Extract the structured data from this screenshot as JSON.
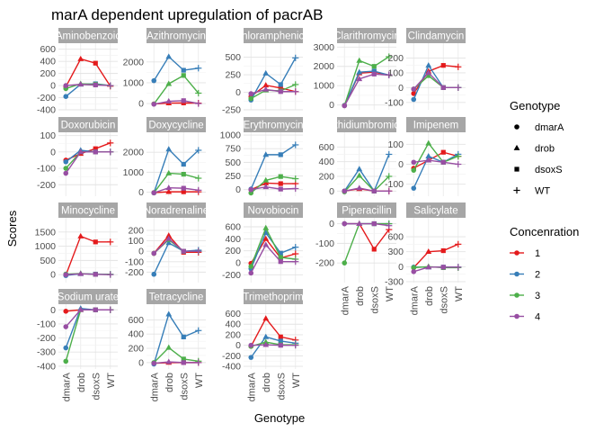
{
  "chart_data": {
    "type": "line",
    "title": "marA dependent upregulation of pacrAB",
    "xlabel": "Genotype",
    "ylabel": "Scores",
    "categories": [
      "dmarA",
      "drob",
      "dsoxS",
      "WT"
    ],
    "grid": true,
    "legend_placement": "right",
    "legends": {
      "shape": {
        "title": "Genotype",
        "entries": [
          {
            "label": "dmarA",
            "shape": "circle"
          },
          {
            "label": "drob",
            "shape": "triangle"
          },
          {
            "label": "dsoxS",
            "shape": "square"
          },
          {
            "label": "WT",
            "shape": "plus"
          }
        ]
      },
      "color": {
        "title": "Concenration",
        "entries": [
          {
            "label": "1",
            "color": "#e41a1c"
          },
          {
            "label": "2",
            "color": "#377eb8"
          },
          {
            "label": "3",
            "color": "#4daf4a"
          },
          {
            "label": "4",
            "color": "#984ea3"
          }
        ]
      }
    },
    "panels": [
      {
        "name": "Aminobenzoic",
        "ylim": [
          -400,
          700
        ],
        "yticks": [
          -400,
          -200,
          0,
          200,
          400,
          600
        ],
        "series": [
          {
            "name": "1",
            "values": [
              -20,
              440,
              370,
              -10
            ]
          },
          {
            "name": "2",
            "values": [
              -180,
              20,
              30,
              0
            ]
          },
          {
            "name": "3",
            "values": [
              -50,
              30,
              20,
              0
            ]
          },
          {
            "name": "4",
            "values": [
              0,
              20,
              10,
              0
            ]
          }
        ]
      },
      {
        "name": "Azithromycin",
        "ylim": [
          -300,
          2900
        ],
        "yticks": [
          0,
          1000,
          2000
        ],
        "series": [
          {
            "name": "1",
            "values": [
              -20,
              20,
              30,
              20
            ]
          },
          {
            "name": "2",
            "values": [
              1100,
              2250,
              1600,
              1700
            ]
          },
          {
            "name": "3",
            "values": [
              -20,
              950,
              1350,
              500
            ]
          },
          {
            "name": "4",
            "values": [
              -30,
              110,
              140,
              0
            ]
          }
        ]
      },
      {
        "name": "Chloramphenicol",
        "ylim": [
          -250,
          700
        ],
        "yticks": [
          -250,
          0,
          250,
          500
        ],
        "series": [
          {
            "name": "1",
            "values": [
              -60,
              100,
              60,
              10
            ]
          },
          {
            "name": "2",
            "values": [
              -110,
              270,
              110,
              490
            ]
          },
          {
            "name": "3",
            "values": [
              -90,
              30,
              20,
              110
            ]
          },
          {
            "name": "4",
            "values": [
              -20,
              40,
              10,
              10
            ]
          }
        ]
      },
      {
        "name": "Clarithromycin",
        "ylim": [
          -250,
          3200
        ],
        "yticks": [
          0,
          1000,
          2000,
          3000
        ],
        "series": [
          {
            "name": "1",
            "values": [
              -30,
              1650,
              1700,
              1550
            ]
          },
          {
            "name": "2",
            "values": [
              -20,
              1700,
              1750,
              1550
            ]
          },
          {
            "name": "3",
            "values": [
              -30,
              2300,
              2000,
              2500
            ]
          },
          {
            "name": "4",
            "values": [
              -40,
              1350,
              1600,
              1550
            ]
          }
        ]
      },
      {
        "name": "Clindamycin",
        "ylim": [
          -150,
          300
        ],
        "yticks": [
          -100,
          0,
          100,
          200
        ],
        "series": [
          {
            "name": "1",
            "values": [
              -40,
              110,
              150,
              140
            ]
          },
          {
            "name": "2",
            "values": [
              -80,
              150,
              0,
              0
            ]
          },
          {
            "name": "3",
            "values": [
              -10,
              80,
              0,
              0
            ]
          },
          {
            "name": "4",
            "values": [
              -10,
              100,
              0,
              0
            ]
          }
        ]
      },
      {
        "name": "Doxorubicin",
        "ylim": [
          -270,
          120
        ],
        "yticks": [
          -200,
          -100,
          0,
          100
        ],
        "series": [
          {
            "name": "1",
            "values": [
              -50,
              -10,
              20,
              55
            ]
          },
          {
            "name": "2",
            "values": [
              -60,
              10,
              0,
              0
            ]
          },
          {
            "name": "3",
            "values": [
              -100,
              0,
              0,
              0
            ]
          },
          {
            "name": "4",
            "values": [
              -130,
              0,
              0,
              0
            ]
          }
        ]
      },
      {
        "name": "Doxycycline",
        "ylim": [
          -200,
          3000
        ],
        "yticks": [
          0,
          1000,
          2000
        ],
        "series": [
          {
            "name": "1",
            "values": [
              -20,
              20,
              20,
              20
            ]
          },
          {
            "name": "2",
            "values": [
              -30,
              2150,
              1400,
              2100
            ]
          },
          {
            "name": "3",
            "values": [
              -30,
              950,
              900,
              700
            ]
          },
          {
            "name": "4",
            "values": [
              -30,
              220,
              200,
              100
            ]
          }
        ]
      },
      {
        "name": "Erythromycin",
        "ylim": [
          -120,
          1050
        ],
        "yticks": [
          0,
          250,
          500,
          750,
          1000
        ],
        "series": [
          {
            "name": "1",
            "values": [
              0,
              120,
              110,
              110
            ]
          },
          {
            "name": "2",
            "values": [
              10,
              640,
              640,
              820
            ]
          },
          {
            "name": "3",
            "values": [
              -60,
              170,
              240,
              200
            ]
          },
          {
            "name": "4",
            "values": [
              0,
              50,
              10,
              20
            ]
          }
        ]
      },
      {
        "name": "Ethidiumbromide",
        "ylim": [
          -70,
          800
        ],
        "yticks": [
          0,
          200,
          400,
          600
        ],
        "series": [
          {
            "name": "1",
            "values": [
              0,
              30,
              0,
              0
            ]
          },
          {
            "name": "2",
            "values": [
              0,
              300,
              0,
              500
            ]
          },
          {
            "name": "3",
            "values": [
              -10,
              210,
              0,
              200
            ]
          },
          {
            "name": "4",
            "values": [
              0,
              40,
              0,
              0
            ]
          }
        ]
      },
      {
        "name": "Imipenem",
        "ylim": [
          -160,
          160
        ],
        "yticks": [
          -100,
          0,
          100
        ],
        "series": [
          {
            "name": "1",
            "values": [
              -20,
              20,
              60,
              40
            ]
          },
          {
            "name": "2",
            "values": [
              -120,
              40,
              10,
              50
            ]
          },
          {
            "name": "3",
            "values": [
              -30,
              105,
              10,
              40
            ]
          },
          {
            "name": "4",
            "values": [
              10,
              20,
              10,
              0
            ]
          }
        ]
      },
      {
        "name": "Minocycline",
        "ylim": [
          -280,
          2000
        ],
        "yticks": [
          0,
          500,
          1000,
          1500
        ],
        "series": [
          {
            "name": "1",
            "values": [
              -20,
              1350,
              1150,
              1150
            ]
          },
          {
            "name": "2",
            "values": [
              -30,
              30,
              20,
              10
            ]
          },
          {
            "name": "3",
            "values": [
              20,
              40,
              10,
              10
            ]
          },
          {
            "name": "4",
            "values": [
              0,
              30,
              10,
              0
            ]
          }
        ]
      },
      {
        "name": "Noradrenaline",
        "ylim": [
          -300,
          320
        ],
        "yticks": [
          -200,
          -100,
          0,
          100,
          200
        ],
        "series": [
          {
            "name": "1",
            "values": [
              -20,
              150,
              -10,
              -10
            ]
          },
          {
            "name": "2",
            "values": [
              -220,
              80,
              0,
              10
            ]
          },
          {
            "name": "3",
            "values": [
              -20,
              110,
              0,
              0
            ]
          },
          {
            "name": "4",
            "values": [
              -20,
              120,
              0,
              0
            ]
          }
        ]
      },
      {
        "name": "Novobiocin",
        "ylim": [
          -330,
          750
        ],
        "yticks": [
          -200,
          0,
          200,
          400,
          600
        ],
        "series": [
          {
            "name": "1",
            "values": [
              -10,
              400,
              80,
              150
            ]
          },
          {
            "name": "2",
            "values": [
              -100,
              500,
              160,
              260
            ]
          },
          {
            "name": "3",
            "values": [
              -60,
              580,
              90,
              60
            ]
          },
          {
            "name": "4",
            "values": [
              -170,
              300,
              20,
              20
            ]
          }
        ]
      },
      {
        "name": "Piperacillin",
        "ylim": [
          -300,
          30
        ],
        "yticks": [
          -200,
          -100,
          0
        ],
        "series": [
          {
            "name": "1",
            "values": [
              0,
              0,
              -130,
              -30
            ]
          },
          {
            "name": "2",
            "values": [
              0,
              0,
              0,
              0
            ]
          },
          {
            "name": "3",
            "values": [
              -200,
              0,
              0,
              0
            ]
          },
          {
            "name": "4",
            "values": [
              0,
              0,
              0,
              -10
            ]
          }
        ]
      },
      {
        "name": "Salicylate",
        "ylim": [
          -320,
          980
        ],
        "yticks": [
          -300,
          0,
          300,
          600
        ],
        "series": [
          {
            "name": "1",
            "values": [
              -20,
              300,
              320,
              450
            ]
          },
          {
            "name": "2",
            "values": [
              -10,
              -10,
              -10,
              -10
            ]
          },
          {
            "name": "3",
            "values": [
              -20,
              0,
              -20,
              -20
            ]
          },
          {
            "name": "4",
            "values": [
              -100,
              -10,
              -10,
              -10
            ]
          }
        ]
      },
      {
        "name": "Sodium urate",
        "ylim": [
          -420,
          40
        ],
        "yticks": [
          -400,
          -300,
          -200,
          -100,
          0
        ],
        "series": [
          {
            "name": "1",
            "values": [
              -10,
              0,
              0,
              0
            ]
          },
          {
            "name": "2",
            "values": [
              -270,
              10,
              0,
              0
            ]
          },
          {
            "name": "3",
            "values": [
              -365,
              0,
              0,
              0
            ]
          },
          {
            "name": "4",
            "values": [
              -120,
              0,
              0,
              0
            ]
          }
        ]
      },
      {
        "name": "Tetracycline",
        "ylim": [
          -90,
          820
        ],
        "yticks": [
          0,
          200,
          400,
          600
        ],
        "series": [
          {
            "name": "1",
            "values": [
              -10,
              0,
              0,
              0
            ]
          },
          {
            "name": "2",
            "values": [
              -20,
              680,
              360,
              450
            ]
          },
          {
            "name": "3",
            "values": [
              0,
              210,
              50,
              20
            ]
          },
          {
            "name": "4",
            "values": [
              -10,
              10,
              0,
              0
            ]
          }
        ]
      },
      {
        "name": "Trimethoprim",
        "ylim": [
          -450,
          780
        ],
        "yticks": [
          -400,
          -200,
          0,
          200,
          400,
          600
        ],
        "series": [
          {
            "name": "1",
            "values": [
              -20,
              510,
              160,
              100
            ]
          },
          {
            "name": "2",
            "values": [
              -230,
              160,
              80,
              40
            ]
          },
          {
            "name": "3",
            "values": [
              -20,
              60,
              10,
              10
            ]
          },
          {
            "name": "4",
            "values": [
              0,
              10,
              0,
              0
            ]
          }
        ]
      }
    ]
  }
}
